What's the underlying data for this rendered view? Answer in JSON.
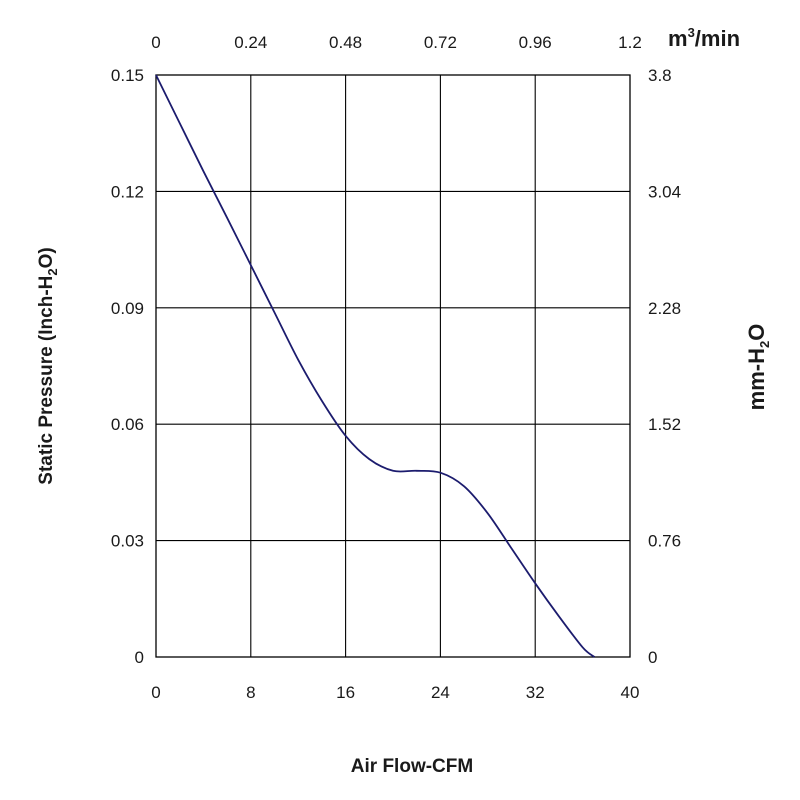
{
  "chart_data": {
    "type": "line",
    "x": [
      0,
      2,
      4,
      6,
      8,
      10,
      12,
      14,
      16,
      18,
      20,
      22,
      24,
      26,
      28,
      30,
      32,
      34,
      36,
      37
    ],
    "series": [
      {
        "name": "Static Pressure",
        "values": [
          0.15,
          0.1376,
          0.1252,
          0.1132,
          0.101,
          0.0888,
          0.0766,
          0.066,
          0.057,
          0.051,
          0.048,
          0.048,
          0.0475,
          0.044,
          0.037,
          0.028,
          0.019,
          0.0105,
          0.0025,
          0
        ],
        "color": "#1c1c6e"
      }
    ],
    "xlim": [
      0,
      40
    ],
    "ylim": [
      0,
      0.15
    ],
    "x_ticks": [
      "0",
      "8",
      "16",
      "24",
      "32",
      "40"
    ],
    "y_ticks": [
      "0",
      "0.03",
      "0.06",
      "0.09",
      "0.12",
      "0.15"
    ],
    "x2_ticks": [
      "0",
      "0.24",
      "0.48",
      "0.72",
      "0.96",
      "1.2"
    ],
    "y2_ticks": [
      "0",
      "0.76",
      "1.52",
      "2.28",
      "3.04",
      "3.8"
    ],
    "xlabel": "Air Flow-CFM",
    "ylabel_main": "Static Pressure (Inch-H",
    "ylabel_sub": "2",
    "ylabel_end": "O)",
    "x2label_main": "m",
    "x2label_sup": "3",
    "x2label_end": "/min",
    "y2label_main": "mm-H",
    "y2label_sub": "2",
    "y2label_end": "O",
    "grid": true
  }
}
